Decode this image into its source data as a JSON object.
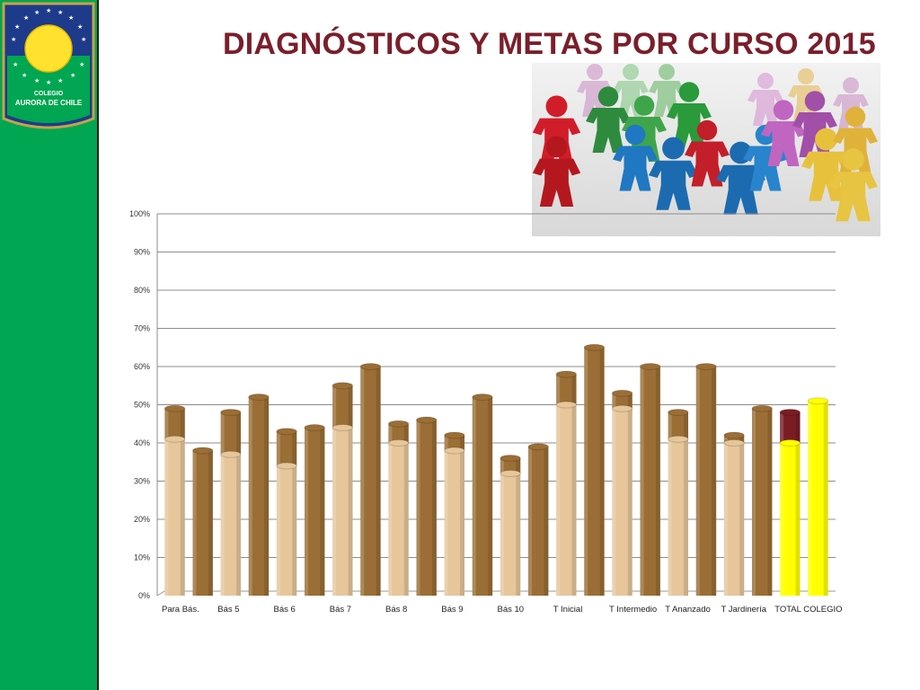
{
  "header": {
    "title": "DIAGNÓSTICOS Y METAS POR CURSO 2015"
  },
  "logo": {
    "line1": "COLEGIO",
    "line2": "AURORA DE CHILE"
  },
  "colors": {
    "stripe": "#00a651",
    "title": "#7a1f2b",
    "diagnostic_bar": "#e6c69a",
    "goal_bar": "#9a6e35",
    "total_diagnostic_bar": "#ffff00",
    "total_goal_bar": "#7a1c24"
  },
  "chart_data": {
    "type": "bar",
    "ylim": [
      0,
      100
    ],
    "yticks": [
      "0%",
      "10%",
      "20%",
      "30%",
      "40%",
      "50%",
      "60%",
      "70%",
      "80%",
      "90%",
      "100%"
    ],
    "x_tick_labels": [
      "Para Bás.",
      "Bás 5",
      "Bás 6",
      "Bás 7",
      "Bás 8",
      "Bás 9",
      "Bás 10",
      "T Inicial",
      "T Intermedio",
      "T Ananzado",
      "T Jardinería",
      "TOTAL COLEGIO"
    ],
    "bars": [
      {
        "diagnostic": 41,
        "goal": 49
      },
      {
        "goal": 38
      },
      {
        "diagnostic": 37,
        "goal": 48
      },
      {
        "goal": 52
      },
      {
        "diagnostic": 34,
        "goal": 43
      },
      {
        "goal": 44
      },
      {
        "diagnostic": 44,
        "goal": 55
      },
      {
        "goal": 60
      },
      {
        "diagnostic": 40,
        "goal": 45
      },
      {
        "goal": 46
      },
      {
        "diagnostic": 38,
        "goal": 42
      },
      {
        "goal": 52
      },
      {
        "diagnostic": 32,
        "goal": 36
      },
      {
        "goal": 39
      },
      {
        "diagnostic": 50,
        "goal": 58
      },
      {
        "goal": 65
      },
      {
        "diagnostic": 49,
        "goal": 53
      },
      {
        "goal": 60
      },
      {
        "diagnostic": 41,
        "goal": 48
      },
      {
        "goal": 60
      },
      {
        "diagnostic": 40,
        "goal": 42
      },
      {
        "goal": 49
      },
      {
        "diagnostic": 40,
        "goal": 48,
        "highlight": true
      },
      {
        "goal": 51,
        "highlight": true
      }
    ],
    "grid": true,
    "legend": "none"
  }
}
